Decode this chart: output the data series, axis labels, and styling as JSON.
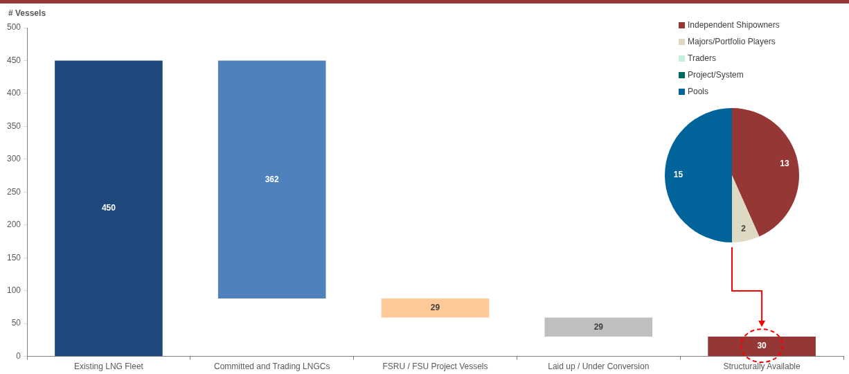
{
  "chart_data": [
    {
      "type": "bar",
      "ylabel": "# Vessels",
      "categories": [
        "Existing LNG Fleet",
        "Committed and Trading LNGCs",
        "FSRU / FSU Project Vessels",
        "Laid up / Under Conversion",
        "Structurally Available"
      ],
      "values": [
        450,
        362,
        29,
        29,
        30
      ],
      "base": [
        0,
        88,
        59,
        30,
        0
      ],
      "colors": [
        "#1f497d",
        "#4f81bd",
        "#fdc998",
        "#bfbfbf",
        "#953735"
      ],
      "ylim": [
        0,
        500
      ],
      "yticks": [
        0,
        50,
        100,
        150,
        200,
        250,
        300,
        350,
        400,
        450,
        500
      ],
      "grid": false,
      "legend": false,
      "data_labels": true
    },
    {
      "type": "pie",
      "categories": [
        "Independent Shipowners",
        "Majors/Portfolio Players",
        "Traders",
        "Project/System",
        "Pools"
      ],
      "values": [
        13,
        2,
        0,
        0,
        15
      ],
      "value_labels": [
        "13",
        "2",
        null,
        null,
        "15"
      ],
      "colors": [
        "#953735",
        "#ddd9c3",
        "#c6efdb",
        "#006b5e",
        "#00649a"
      ],
      "legend": "top"
    }
  ]
}
